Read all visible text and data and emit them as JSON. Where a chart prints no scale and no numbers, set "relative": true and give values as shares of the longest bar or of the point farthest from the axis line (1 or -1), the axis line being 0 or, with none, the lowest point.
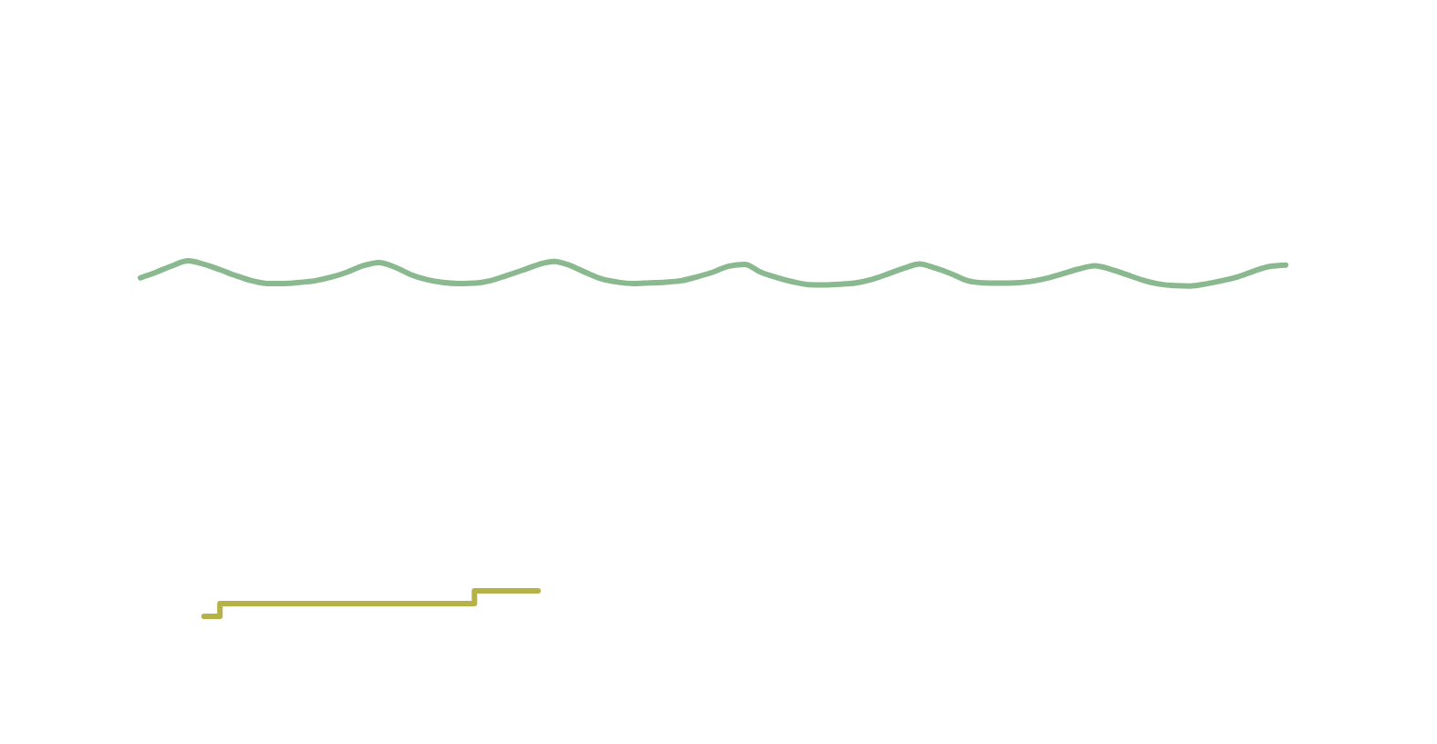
{
  "chart_data": {
    "type": "line",
    "relative": true,
    "tick_labels": false,
    "categories": [
      null,
      null,
      null,
      null,
      null,
      null,
      null,
      null,
      null,
      null,
      null,
      null,
      null,
      null,
      null,
      null,
      null,
      null,
      null,
      null,
      null,
      null,
      null,
      null,
      null,
      null,
      null,
      null,
      null,
      null,
      null,
      null,
      null,
      null,
      null,
      null,
      null,
      null,
      null,
      null,
      null,
      null,
      null,
      null,
      null,
      null,
      null,
      null,
      null,
      null,
      null,
      null,
      null,
      null,
      null,
      null,
      null,
      null,
      null,
      null,
      null,
      null,
      null,
      null,
      null,
      null,
      null,
      null,
      null,
      null,
      null,
      null,
      null
    ],
    "series": [
      {
        "color": "#8ab98f",
        "values": [
          0.952,
          0.968,
          0.986,
          1,
          0.99,
          0.975,
          0.958,
          0.944,
          0.936,
          0.936,
          0.939,
          0.944,
          0.954,
          0.968,
          0.986,
          0.995,
          0.982,
          0.961,
          0.947,
          0.939,
          0.936,
          0.937,
          0.944,
          0.958,
          0.973,
          0.989,
          0.998,
          0.987,
          0.967,
          0.949,
          0.94,
          0.936,
          0.938,
          0.94,
          0.944,
          0.955,
          0.968,
          0.985,
          0.99,
          0.968,
          0.953,
          0.941,
          0.933,
          0.932,
          0.934,
          0.938,
          0.948,
          0.963,
          0.979,
          0.991,
          0.979,
          0.963,
          0.944,
          0.938,
          0.937,
          0.938,
          0.942,
          0.951,
          0.964,
          0.977,
          0.986,
          0.976,
          0.961,
          0.946,
          0.935,
          0.93,
          0.929,
          0.935,
          0.944,
          0.955,
          0.971,
          0.984,
          0.988
        ]
      },
      {
        "type": "step",
        "color": "#b5b347",
        "values": [
          null,
          null,
          null,
          null,
          0,
          0.036,
          0.036,
          0.036,
          0.036,
          0.036,
          0.036,
          0.036,
          0.036,
          0.036,
          0.036,
          0.036,
          0.036,
          0.036,
          0.036,
          0.036,
          0.036,
          0.072,
          0.072,
          0.072,
          0.072,
          0.072,
          null,
          null,
          null,
          null,
          null,
          null,
          null,
          null,
          null,
          null,
          null,
          null,
          null,
          null,
          null,
          null,
          null,
          null,
          null,
          null,
          null,
          null,
          null,
          null,
          null,
          null,
          null,
          null,
          null,
          null,
          null,
          null,
          null,
          null,
          null,
          null,
          null,
          null,
          null,
          null,
          null,
          null,
          null,
          null,
          null,
          null,
          null
        ]
      }
    ]
  }
}
